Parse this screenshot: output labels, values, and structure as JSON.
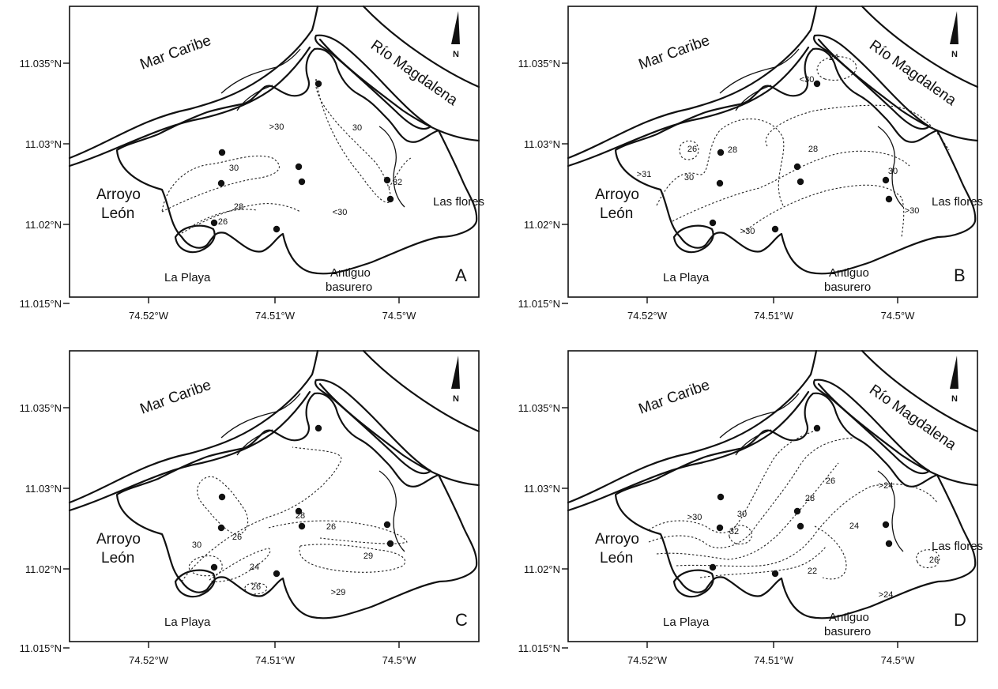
{
  "panels": [
    {
      "letter": "A",
      "labels": {
        "sea": "Mar Caribe",
        "river": "Río Magdalena",
        "arroyo_1": "Arroyo",
        "arroyo_2": "León",
        "playa": "La Playa",
        "basurero_1": "Antiguo",
        "basurero_2": "basurero",
        "flores": "Las flores",
        "north": "N"
      },
      "y_ticks": [
        "11.035°N",
        "11.03°N",
        "11.025°N",
        "11.02°N",
        "11.015°N"
      ],
      "x_ticks": [
        "74.52°W",
        "74.51°W",
        "74.5°W"
      ],
      "iso_labels": [
        "30",
        ">30",
        "28",
        "26",
        "30",
        "32",
        "<30"
      ]
    },
    {
      "letter": "B",
      "labels": {
        "sea": "Mar Caribe",
        "river": "Río Magdalena",
        "arroyo_1": "Arroyo",
        "arroyo_2": "León",
        "playa": "La Playa",
        "basurero_1": "Antiguo",
        "basurero_2": "basurero",
        "flores": "Las flores",
        "north": "N"
      },
      "y_ticks": [
        "11.035°N",
        "11.03°N",
        "11.025°N",
        "11.02°N",
        "11.015°N"
      ],
      "x_ticks": [
        "74.52°W",
        "74.51°W",
        "74.5°W"
      ],
      "iso_labels": [
        "24",
        "<30",
        "28",
        "26",
        "28",
        ">31",
        "30",
        "30",
        ">30",
        ">30"
      ]
    },
    {
      "letter": "C",
      "labels": {
        "sea": "Mar Caribe",
        "river": "",
        "arroyo_1": "Arroyo",
        "arroyo_2": "León",
        "playa": "La Playa",
        "basurero_1": "",
        "basurero_2": "",
        "flores": "",
        "north": "N"
      },
      "y_ticks": [
        "11.035°N",
        "11.03°N",
        "11.025°N",
        "11.02°N",
        "11.015°N"
      ],
      "x_ticks": [
        "74.52°W",
        "74.51°W",
        "74.5°W"
      ],
      "iso_labels": [
        "26",
        "28",
        "26",
        "30",
        "24",
        "29",
        "26",
        ">29"
      ]
    },
    {
      "letter": "D",
      "labels": {
        "sea": "Mar Caribe",
        "river": "Río Magdalena",
        "arroyo_1": "Arroyo",
        "arroyo_2": "León",
        "playa": "La Playa",
        "basurero_1": "Antiguo",
        "basurero_2": "basurero",
        "flores": "Las flores",
        "north": "N"
      },
      "y_ticks": [
        "11.035°N",
        "11.03°N",
        "11.025°N",
        "11.02°N",
        "11.015°N"
      ],
      "x_ticks": [
        "74.52°W",
        "74.51°W",
        "74.5°W"
      ],
      "iso_labels": [
        ">30",
        "30",
        "28",
        "26",
        ">24",
        "32",
        "24",
        "26",
        "22",
        ">24"
      ]
    }
  ]
}
